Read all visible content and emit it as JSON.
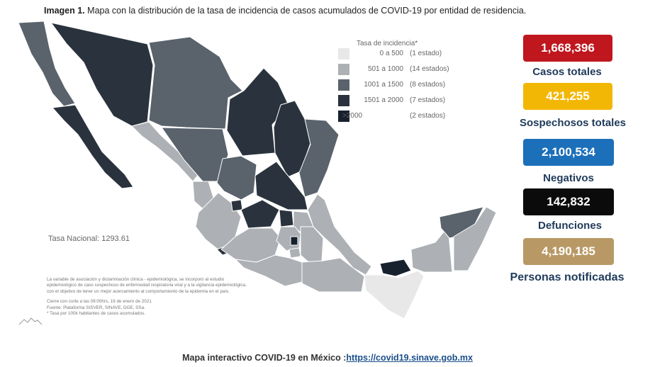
{
  "header": {
    "title_label": "Imagen 1.",
    "title_text": "Mapa con la distribución de la tasa de incidencia de casos acumulados de COVID-19 por entidad de residencia."
  },
  "legend": {
    "title": "Tasa de incidencia*",
    "rows": [
      {
        "range": "0 a   500",
        "count": "(1 estado)",
        "color": "#e8e8e8"
      },
      {
        "range": "501 a  1000",
        "count": "(14 estados)",
        "color": "#adb0b4"
      },
      {
        "range": "1001 a  1500",
        "count": "(8 estados)",
        "color": "#5a636c"
      },
      {
        "range": "1501 a  2000",
        "count": "(7 estados)",
        "color": "#2a333d"
      },
      {
        "range": ">2000",
        "count": "(2 estados)",
        "color": "#17212e"
      }
    ]
  },
  "tasa_nacional": "Tasa Nacional: 1293.61",
  "notes": {
    "line1": "La variable de asociación y dictaminación clínica - epidemiológica, se incorporó al estudio",
    "line2": "epidemiológico de caso sospechoso de enfermedad respiratoria viral y a la vigilancia epidemiológica,",
    "line3": "con el objetivo de tener un mejor acercamiento al comportamiento de la epidemia en el país.",
    "cutoff": "Cierre con corte a las 09:00hrs, 19 de enero de 2021",
    "source": "Fuente: Plataforma SISVER, SINAVE, DGE, SSa.",
    "footnote": "* Tasa por 100k habitantes de casos acumulados."
  },
  "stats": {
    "casos": {
      "value": "1,668,396",
      "label": "Casos totales",
      "color": "#c0161e"
    },
    "sospechosos": {
      "value": "421,255",
      "label": "Sospechosos totales",
      "color": "#f2b705"
    },
    "negativos": {
      "value": "2,100,534",
      "label": "Negativos",
      "color": "#1c6fb9"
    },
    "defunciones": {
      "value": "142,832",
      "label": "Defunciones",
      "color": "#0b0b0b"
    },
    "notificadas": {
      "value": "4,190,185",
      "label": "Personas notificadas",
      "color": "#b89966"
    }
  },
  "footer": {
    "text": "Mapa interactivo COVID-19 en México :",
    "link": "https://covid19.sinave.gob.mx"
  }
}
